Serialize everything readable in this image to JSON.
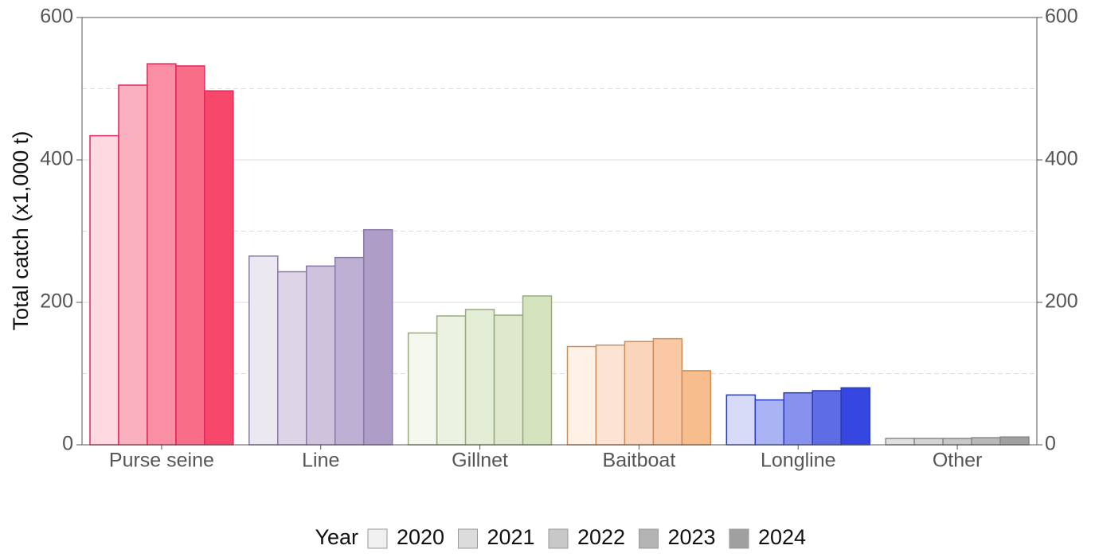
{
  "chart_data": {
    "type": "bar",
    "y_label": "Total catch (x1,000 t)",
    "categories": [
      "Purse seine",
      "Line",
      "Gillnet",
      "Baitboat",
      "Longline",
      "Other"
    ],
    "legend_title": "Year",
    "series": [
      {
        "name": "2020",
        "color": "#f0f0f0",
        "values": [
          434,
          265,
          157,
          138,
          70,
          9
        ]
      },
      {
        "name": "2021",
        "color": "#dcdcdc",
        "values": [
          505,
          243,
          181,
          140,
          63,
          9
        ]
      },
      {
        "name": "2022",
        "color": "#c8c8c8",
        "values": [
          535,
          251,
          190,
          145,
          73,
          9
        ]
      },
      {
        "name": "2023",
        "color": "#b4b4b4",
        "values": [
          532,
          263,
          182,
          149,
          76,
          10
        ]
      },
      {
        "name": "2024",
        "color": "#a0a0a0",
        "values": [
          497,
          302,
          209,
          104,
          80,
          11
        ]
      }
    ],
    "category_colors": [
      [
        "#fdd9e1",
        "#fbb0c0",
        "#fa8ea3",
        "#f86d87",
        "#f7476a"
      ],
      [
        "#ece8f2",
        "#ddd5e7",
        "#cec2dc",
        "#beb0d3",
        "#ae9dc7"
      ],
      [
        "#f4f8ef",
        "#ebf2e2",
        "#e3edd6",
        "#dde8cc",
        "#d5e3be"
      ],
      [
        "#fff1e6",
        "#fde4d2",
        "#fbd5bb",
        "#f9c8a4",
        "#f8bd8d"
      ],
      [
        "#d7dbf7",
        "#aab3f3",
        "#8792ed",
        "#5e6de6",
        "#3646e0"
      ],
      [
        "#e0e0e0",
        "#d4d4d4",
        "#c8c8c8",
        "#b8b8b8",
        "#a0a0a0"
      ]
    ],
    "category_strokes": [
      "#e0285a",
      "#8a78a8",
      "#9aaa80",
      "#cc8e5a",
      "#2a3ab8",
      "#8a8a8a"
    ],
    "ylim": [
      0,
      600
    ],
    "yticks": [
      0,
      200,
      400,
      600
    ],
    "y2lim": [
      0,
      600
    ],
    "y2ticks": [
      0,
      200,
      400,
      600
    ],
    "minor_grid": [
      100,
      300,
      500
    ],
    "grid": true
  }
}
